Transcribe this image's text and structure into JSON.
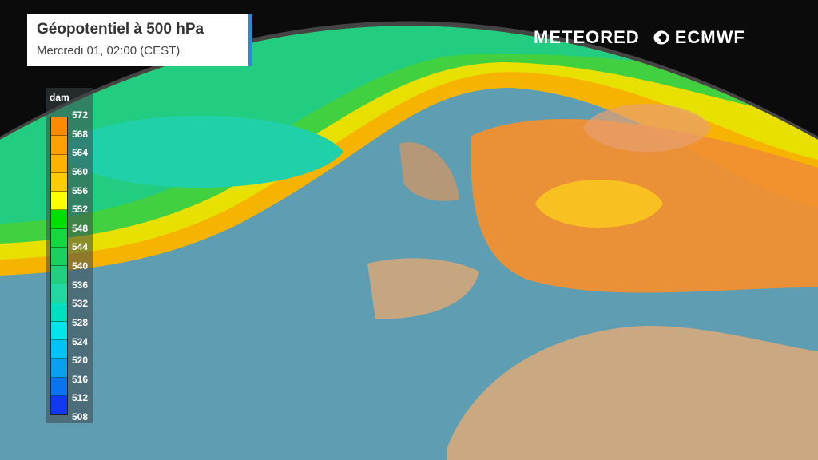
{
  "header": {
    "title": "Géopotentiel à 500 hPa",
    "subtitle": "Mercredi 01, 02:00 (CEST)"
  },
  "logos": {
    "meteored": "METEORED",
    "ecmwf": "ECMWF"
  },
  "legend": {
    "unit": "dam",
    "ticks": [
      "572",
      "568",
      "564",
      "560",
      "556",
      "552",
      "548",
      "544",
      "540",
      "536",
      "532",
      "528",
      "524",
      "520",
      "516",
      "512",
      "508"
    ],
    "colors": [
      "#ff8a00",
      "#ff9f00",
      "#ffb300",
      "#ffcc00",
      "#ffff00",
      "#00e000",
      "#14d840",
      "#1ad060",
      "#20d080",
      "#20d8a0",
      "#00e0c0",
      "#00e4ec",
      "#00c4f8",
      "#0aa0f0",
      "#0a74f0",
      "#1038f0"
    ]
  },
  "colors": {
    "ocean": "#5f9db3",
    "land": "#c9a882",
    "high": "#f5a030",
    "jet": "#30d060"
  }
}
